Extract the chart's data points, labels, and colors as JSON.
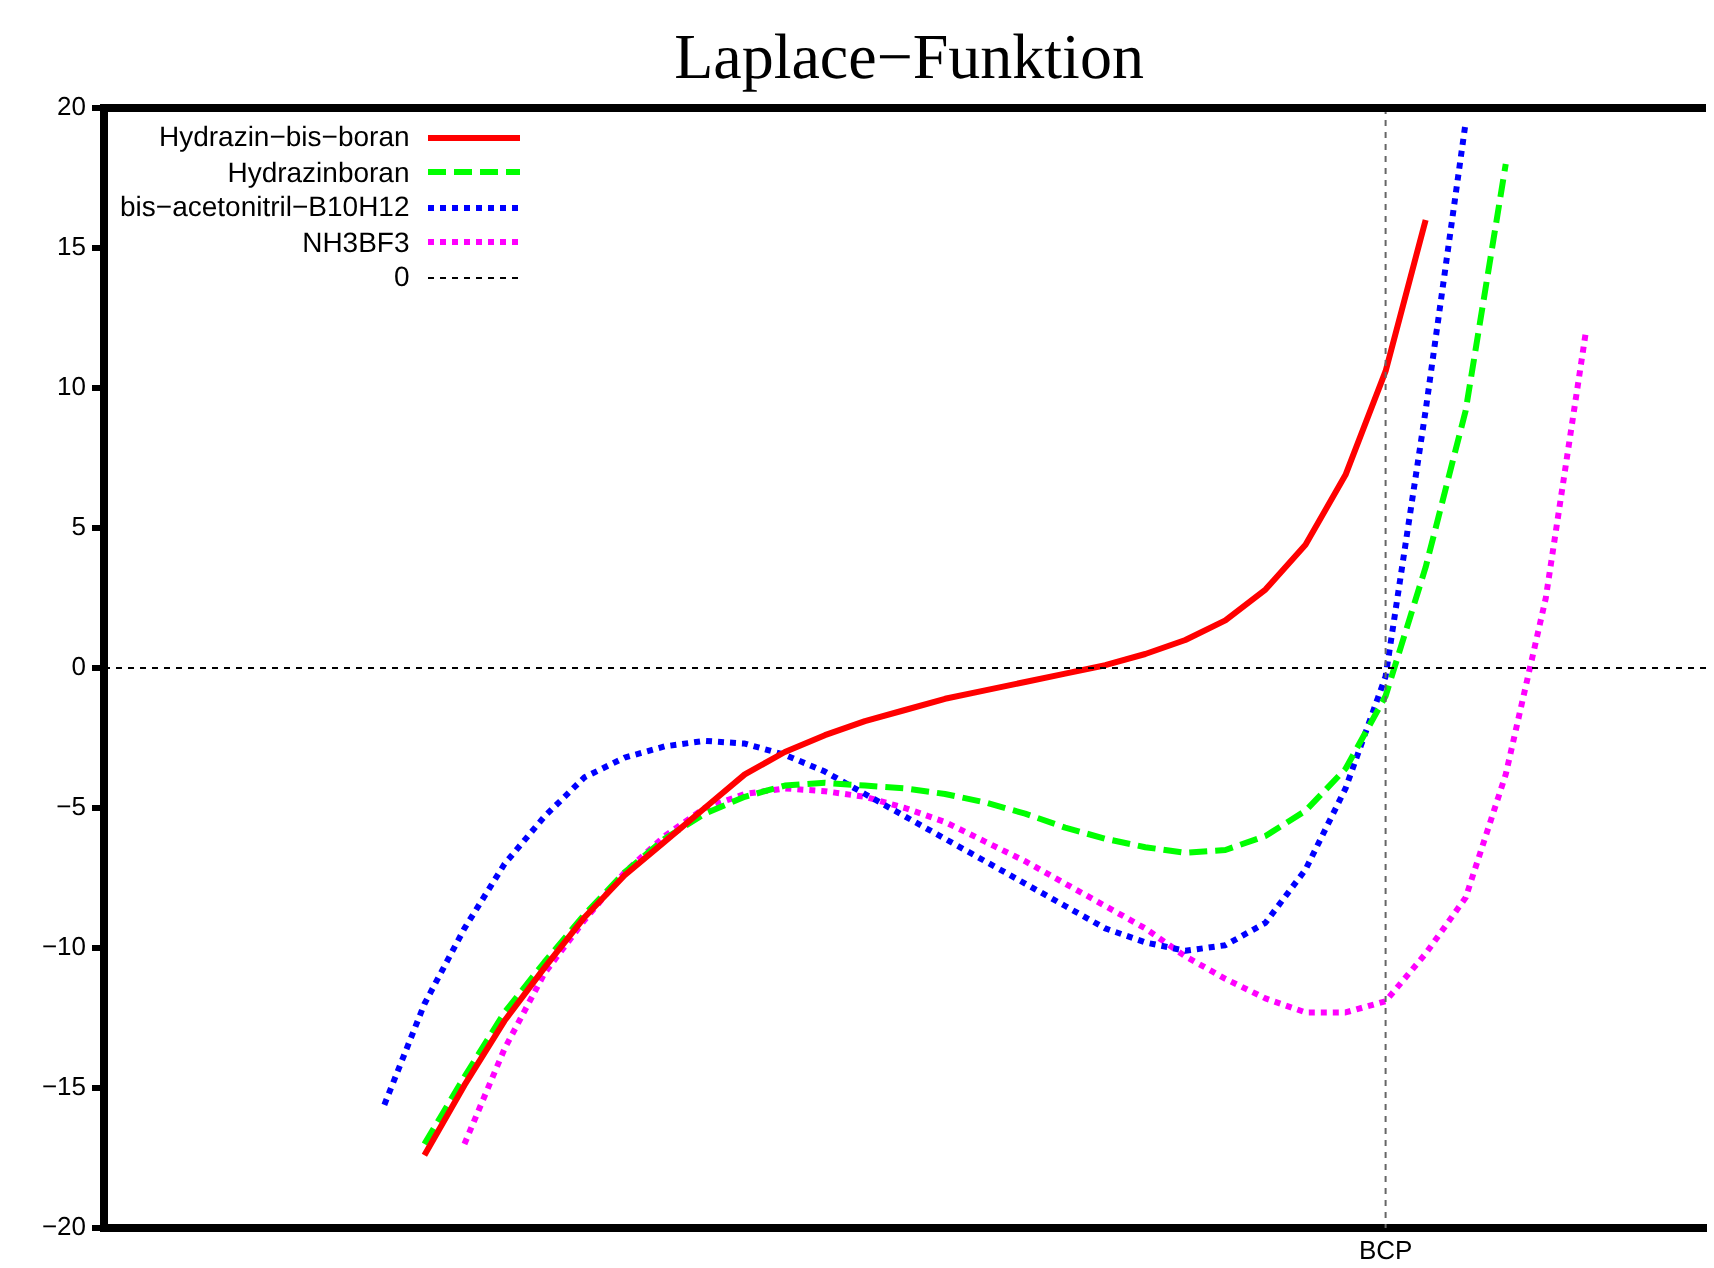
{
  "chart_data": {
    "type": "line",
    "title": "Laplace−Funktion",
    "categories": [
      null,
      null,
      null,
      null,
      null,
      null,
      null,
      null,
      null,
      null,
      null,
      null,
      null,
      null,
      null,
      null,
      null,
      null,
      null,
      null,
      null,
      null,
      null,
      null,
      null,
      null,
      null,
      null,
      null,
      null,
      null,
      null,
      "BCP",
      null,
      null,
      null,
      null,
      null,
      null,
      null,
      null
    ],
    "ylim": [
      -20,
      20
    ],
    "yticks": [
      -20,
      -15,
      -10,
      -5,
      0,
      5,
      10,
      15,
      20
    ],
    "grid": false,
    "legend": "top left",
    "marker": "none",
    "series": [
      {
        "name": "Hydrazin−bis−boran",
        "color": "#ff0000",
        "line_style": "solid",
        "values": [
          null,
          null,
          null,
          null,
          null,
          null,
          null,
          null,
          -17.4,
          -14.9,
          -12.6,
          -10.7,
          -8.9,
          -7.4,
          -6.2,
          -5.0,
          -3.8,
          -3.0,
          -2.4,
          -1.9,
          -1.5,
          -1.1,
          -0.8,
          -0.5,
          -0.2,
          0.1,
          0.5,
          1.0,
          1.7,
          2.8,
          4.4,
          6.9,
          10.6,
          16.0,
          null,
          null,
          null,
          null,
          null,
          null,
          null
        ]
      },
      {
        "name": "Hydrazinboran",
        "color": "#00ff00",
        "line_style": "dashed",
        "values": [
          null,
          null,
          null,
          null,
          null,
          null,
          null,
          null,
          -17.0,
          -14.6,
          -12.3,
          -10.5,
          -8.8,
          -7.3,
          -6.1,
          -5.2,
          -4.6,
          -4.2,
          -4.1,
          -4.2,
          -4.3,
          -4.5,
          -4.8,
          -5.2,
          -5.7,
          -6.1,
          -6.4,
          -6.6,
          -6.5,
          -6.0,
          -5.1,
          -3.6,
          -1.0,
          3.6,
          9.2,
          18.0,
          null,
          null,
          null,
          null,
          null
        ]
      },
      {
        "name": "bis−acetonitril−B10H12",
        "color": "#0000ff",
        "line_style": "dotted",
        "values": [
          null,
          null,
          null,
          null,
          null,
          null,
          null,
          -15.6,
          -12.0,
          -9.3,
          -7.0,
          -5.3,
          -3.9,
          -3.2,
          -2.8,
          -2.6,
          -2.7,
          -3.1,
          -3.7,
          -4.5,
          -5.3,
          -6.1,
          -6.9,
          -7.7,
          -8.5,
          -9.3,
          -9.8,
          -10.1,
          -9.9,
          -9.1,
          -7.2,
          -4.3,
          -0.3,
          9.2,
          19.5,
          null,
          null,
          null,
          null,
          null,
          null
        ]
      },
      {
        "name": "NH3BF3",
        "color": "#ff00ff",
        "line_style": "dotted",
        "values": [
          null,
          null,
          null,
          null,
          null,
          null,
          null,
          null,
          null,
          -17.0,
          -13.6,
          -10.9,
          -9.0,
          -7.3,
          -6.0,
          -5.0,
          -4.5,
          -4.3,
          -4.4,
          -4.6,
          -5.0,
          -5.5,
          -6.2,
          -6.9,
          -7.7,
          -8.5,
          -9.3,
          -10.3,
          -11.1,
          -11.8,
          -12.3,
          -12.3,
          -11.9,
          -10.2,
          -8.2,
          -3.8,
          2.5,
          12.0,
          null,
          null,
          null
        ]
      }
    ],
    "ref_lines": [
      {
        "axis": "y",
        "value": 0,
        "label": "0",
        "color": "#000000",
        "line_style": "dotted"
      },
      {
        "axis": "x",
        "value": "BCP",
        "color": "#666666",
        "line_style": "dotted"
      }
    ]
  }
}
